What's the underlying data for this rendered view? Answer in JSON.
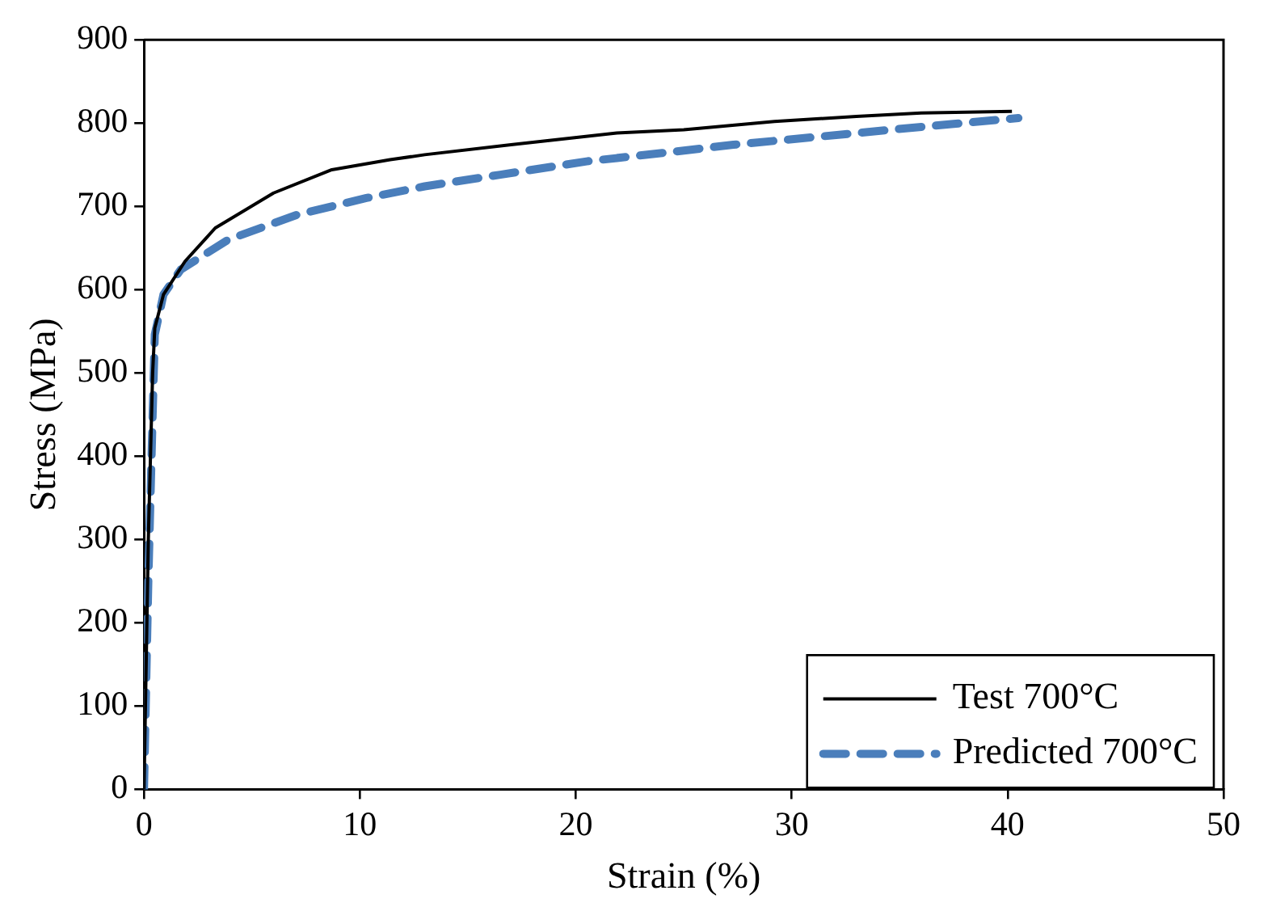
{
  "chart_data": {
    "type": "line",
    "xlabel": "Strain (%)",
    "ylabel": "Stress (MPa)",
    "xlim": [
      0,
      50
    ],
    "xticks": [
      0,
      10,
      20,
      30,
      40,
      50
    ],
    "ylim": [
      0,
      900
    ],
    "yticks": [
      0,
      100,
      200,
      300,
      400,
      500,
      600,
      700,
      800,
      900
    ],
    "legend": "bottom right",
    "marker": "none",
    "series": [
      {
        "name": "Test 700°C",
        "color": "#000000",
        "line_style": "solid",
        "x": [
          0,
          0.2,
          0.4,
          0.5,
          0.9,
          1.9,
          3.3,
          6,
          8.7,
          11.4,
          13,
          17,
          21.9,
          25,
          29.2,
          33,
          36,
          40.2
        ],
        "values": [
          0,
          300,
          500,
          554,
          594,
          634,
          674,
          716,
          744,
          756,
          762,
          774,
          788,
          792,
          802,
          808,
          812,
          814
        ]
      },
      {
        "name": "Predicted 700°C",
        "color": "#4a7ebb",
        "line_style": "dashed",
        "x": [
          0,
          0.2,
          0.4,
          0.5,
          0.9,
          1.7,
          3.9,
          7.1,
          10.3,
          13,
          16.5,
          20.5,
          24,
          27.3,
          31,
          34.6,
          37.5,
          40.5
        ],
        "values": [
          0,
          250,
          450,
          546,
          594,
          624,
          660,
          690,
          710,
          724,
          738,
          754,
          764,
          774,
          783,
          792,
          799,
          806
        ]
      }
    ]
  }
}
